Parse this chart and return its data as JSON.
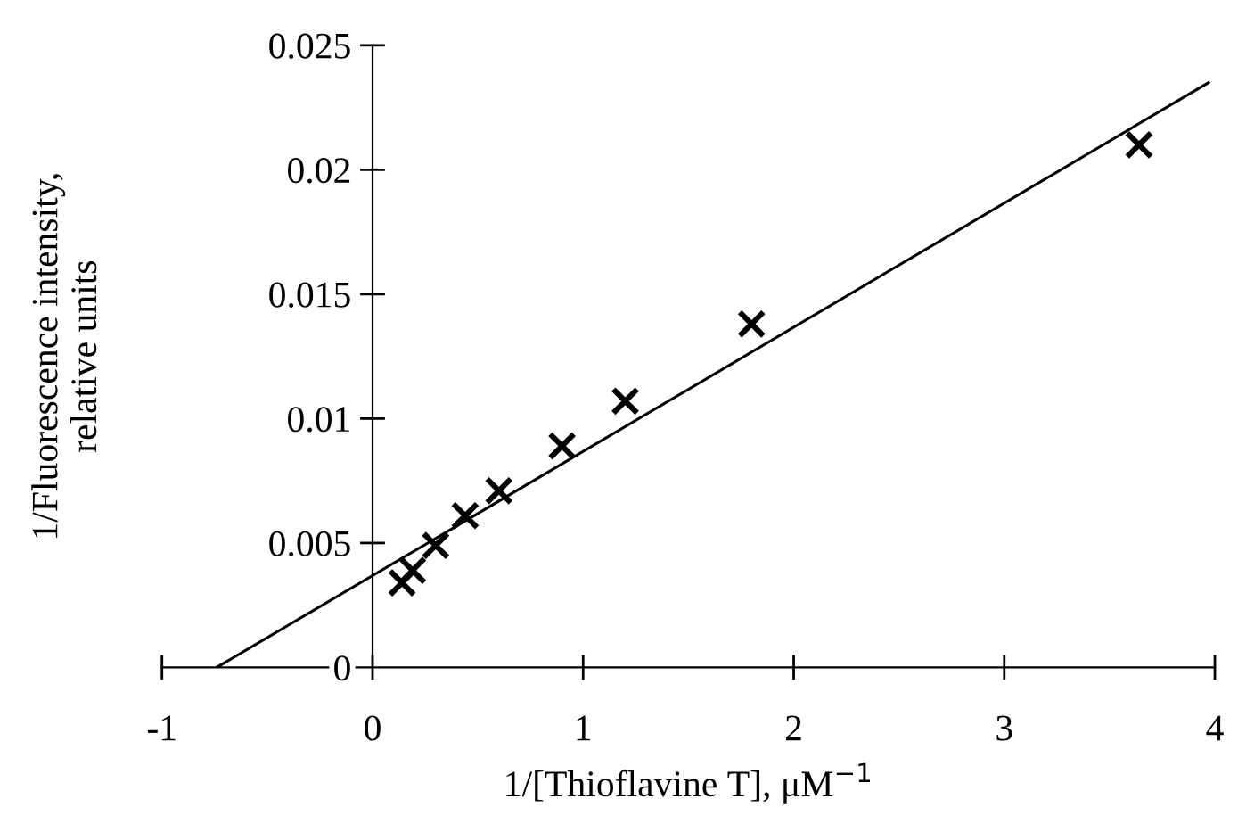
{
  "chart_data": {
    "type": "scatter",
    "xlabel": "1/[Thioflavine T], μM$^{−1}$",
    "ylabel": "1/Fluorescence intensity,\nrelative units",
    "xlim": [
      -1,
      4
    ],
    "xticks": [
      -1,
      0,
      1,
      2,
      3,
      4
    ],
    "ylim": [
      0,
      0.025
    ],
    "yticks": [
      0,
      0.005,
      0.01,
      0.015,
      0.02,
      0.025
    ],
    "grid": false,
    "legend": false,
    "marker": "cross",
    "series": [
      {
        "color": "#000000",
        "x": [
          0.14,
          0.19,
          0.3,
          0.44,
          0.6,
          0.9,
          1.2,
          1.8,
          3.64
        ],
        "values": [
          0.0034,
          0.0039,
          0.0049,
          0.0061,
          0.0071,
          0.0089,
          0.0107,
          0.0138,
          0.021
        ]
      },
      {
        "type": "line",
        "color": "#000000",
        "marker": "none",
        "line_style": "solid",
        "x": [
          -0.74,
          3.97
        ],
        "values": [
          0,
          0.0235
        ]
      }
    ]
  }
}
